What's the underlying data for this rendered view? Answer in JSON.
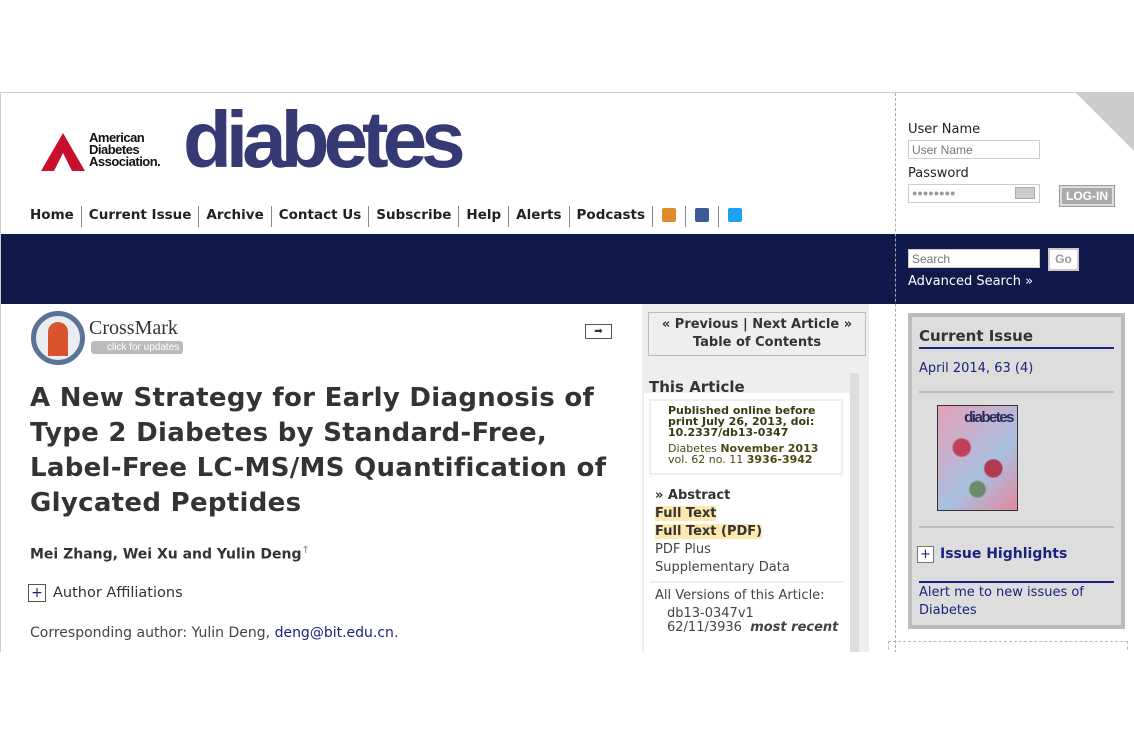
{
  "header": {
    "association": [
      "American",
      "Diabetes",
      "Association."
    ],
    "brand": "diabetes",
    "nav": [
      "Home",
      "Current Issue",
      "Archive",
      "Contact Us",
      "Subscribe",
      "Help",
      "Alerts",
      "Podcasts"
    ],
    "social_icons": [
      "rss-icon",
      "facebook-icon",
      "twitter-icon"
    ],
    "brand_color": "#353a74",
    "band_color": "#0f1a4a"
  },
  "login": {
    "username_label": "User Name",
    "username_placeholder": "User Name",
    "password_label": "Password",
    "password_value": "●●●●●●●●",
    "login_button": "LOG-IN"
  },
  "search": {
    "placeholder": "Search",
    "go": "Go",
    "advanced": "Advanced Search »"
  },
  "crossmark": {
    "name": "CrossMark",
    "sub": "click for updates"
  },
  "article": {
    "title": "A New Strategy for Early Diagnosis of Type 2 Diabetes by Standard-Free, Label-Free LC-MS/MS Quantification of Glycated Peptides",
    "authors": "Mei Zhang, Wei Xu and Yulin Deng",
    "affiliations": "Author Affiliations",
    "corresponding_label": "Corresponding author: Yulin Deng, ",
    "email": "deng@bit.edu.cn",
    "email_end": "."
  },
  "navbox": {
    "prev": "« Previous",
    "sep": "|",
    "next": "Next Article »",
    "toc": "Table of Contents"
  },
  "this_article": {
    "heading": "This Article",
    "published": "Published online before print July 26, 2013, doi: 10.2337/db13-0347",
    "journal": "Diabetes ",
    "date": "November 2013",
    "vol": "vol. 62 no. 11 ",
    "pages": "3936-3942",
    "links": {
      "abstract": "» Abstract",
      "full_text": "Full Text",
      "full_pdf": "Full Text (PDF)",
      "pdf_plus": "PDF Plus",
      "supp": "Supplementary Data"
    },
    "versions_label": "All Versions of this Article:",
    "v1": "db13-0347v1",
    "v2": "62/11/3936",
    "most_recent": "most recent"
  },
  "current_issue": {
    "heading": "Current Issue",
    "issue": "April 2014, 63 (4)",
    "cover_title": "diabetes",
    "highlights": "Issue Highlights",
    "alert": "Alert me to new issues of Diabetes"
  }
}
